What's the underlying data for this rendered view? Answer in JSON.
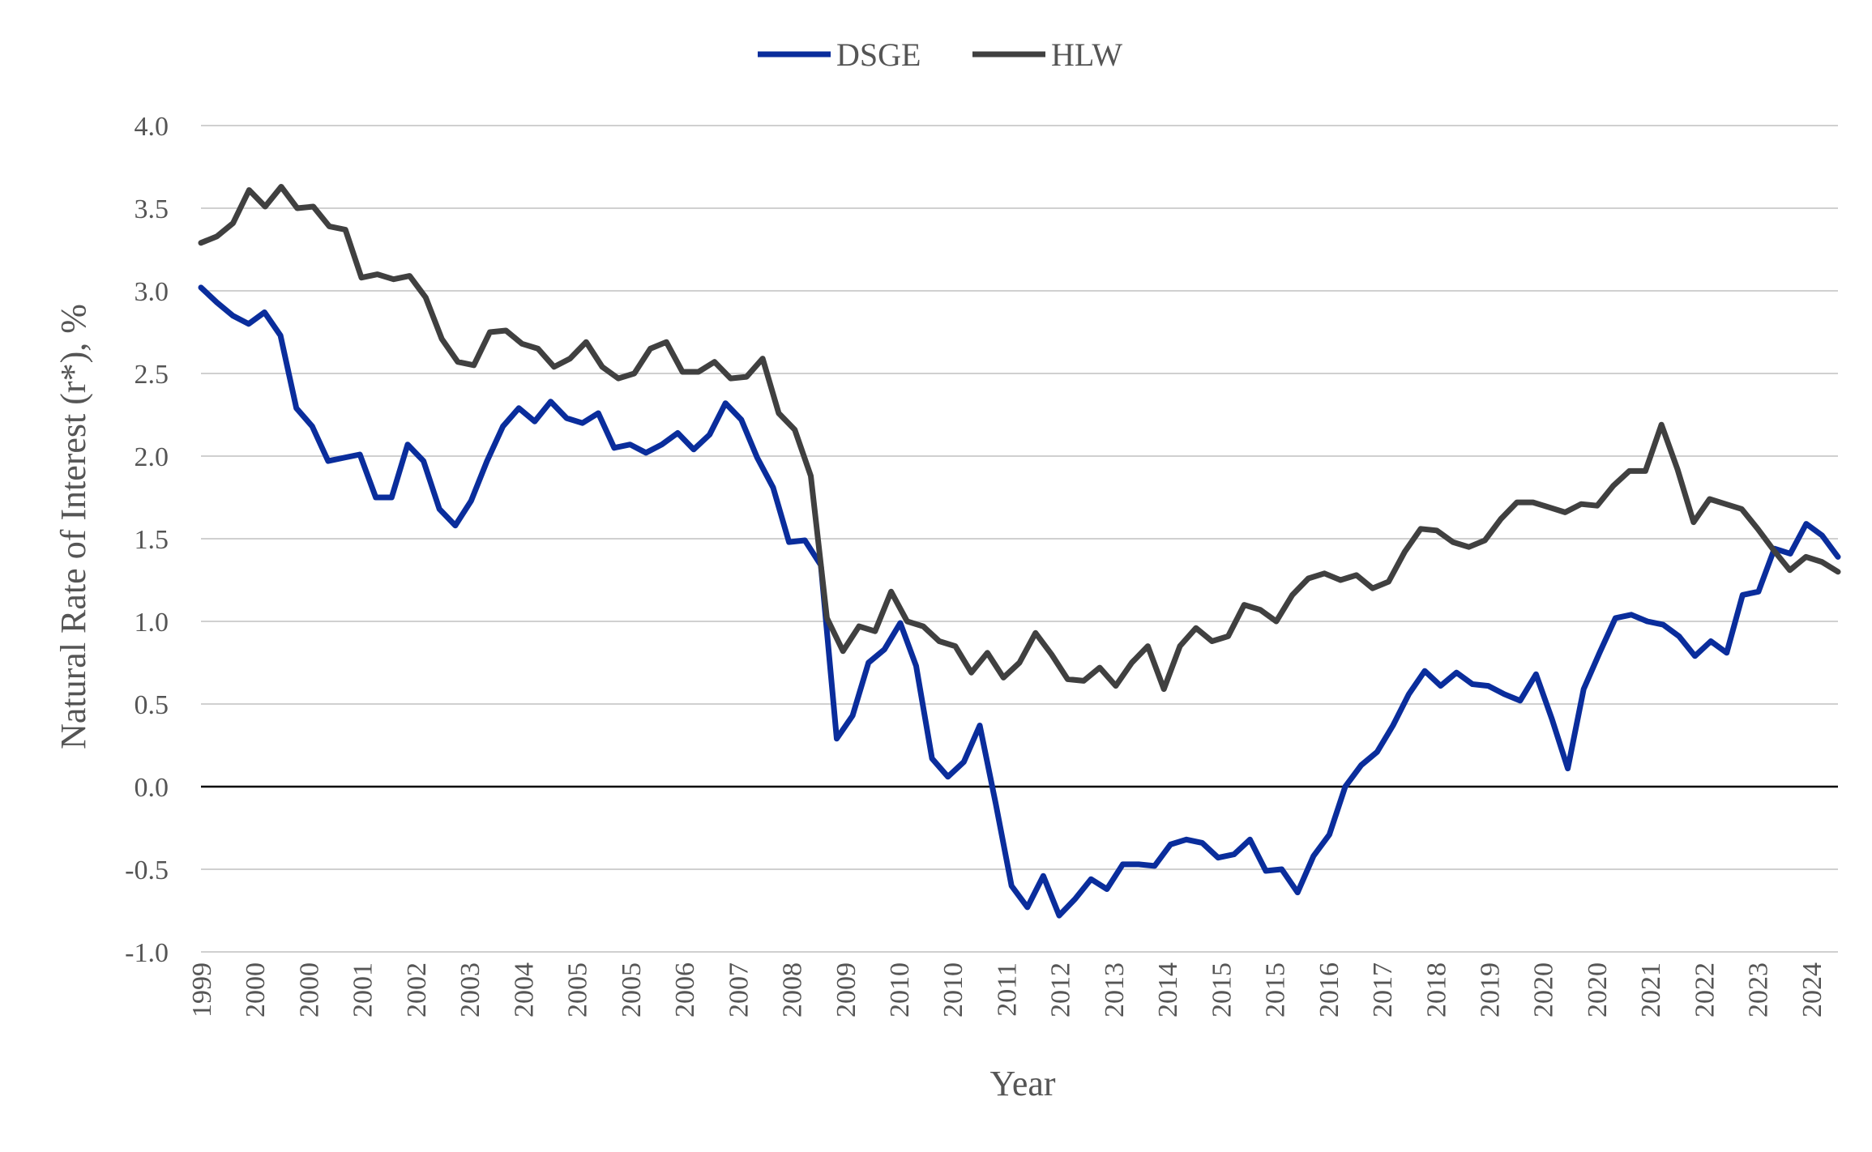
{
  "chart_data": {
    "type": "line",
    "title": "",
    "xlabel": "Year",
    "ylabel": "Natural Rate of Interest (r*), %",
    "ylim": [
      -1.0,
      4.0
    ],
    "yticks": [
      "4.0",
      "3.5",
      "3.0",
      "2.5",
      "2.0",
      "1.5",
      "1.0",
      "0.5",
      "0.0",
      "-0.5",
      "-1.0"
    ],
    "ytick_values": [
      4.0,
      3.5,
      3.0,
      2.5,
      2.0,
      1.5,
      1.0,
      0.5,
      0.0,
      -0.5,
      -1.0
    ],
    "x_tick_labels": [
      "1999",
      "2000",
      "2000",
      "2001",
      "2002",
      "2003",
      "2004",
      "2005",
      "2005",
      "2006",
      "2007",
      "2008",
      "2009",
      "2010",
      "2010",
      "2011",
      "2012",
      "2013",
      "2014",
      "2015",
      "2015",
      "2016",
      "2017",
      "2018",
      "2019",
      "2020",
      "2020",
      "2021",
      "2022",
      "2023",
      "2024"
    ],
    "grid": true,
    "legend_position": "top-center",
    "colors": {
      "DSGE": "#0a2d9c",
      "HLW": "#404040",
      "grid": "#d0d0d0",
      "zero": "#000000"
    },
    "series": [
      {
        "name": "DSGE",
        "values": [
          3.02,
          2.93,
          2.85,
          2.8,
          2.87,
          2.73,
          2.29,
          2.18,
          1.97,
          1.99,
          2.01,
          1.75,
          1.75,
          2.07,
          1.97,
          1.68,
          1.58,
          1.73,
          1.97,
          2.18,
          2.29,
          2.21,
          2.33,
          2.23,
          2.2,
          2.26,
          2.05,
          2.07,
          2.02,
          2.07,
          2.14,
          2.04,
          2.13,
          2.32,
          2.22,
          1.99,
          1.81,
          1.48,
          1.49,
          1.34,
          0.29,
          0.43,
          0.75,
          0.83,
          0.99,
          0.73,
          0.17,
          0.06,
          0.15,
          0.37,
          -0.1,
          -0.6,
          -0.73,
          -0.54,
          -0.78,
          -0.68,
          -0.56,
          -0.62,
          -0.47,
          -0.47,
          -0.48,
          -0.35,
          -0.32,
          -0.34,
          -0.43,
          -0.41,
          -0.32,
          -0.51,
          -0.5,
          -0.64,
          -0.42,
          -0.29,
          0.0,
          0.13,
          0.21,
          0.37,
          0.56,
          0.7,
          0.61,
          0.69,
          0.62,
          0.61,
          0.56,
          0.52,
          0.68,
          0.41,
          0.11,
          0.59,
          0.81,
          1.02,
          1.04,
          1.0,
          0.98,
          0.91,
          0.79,
          0.88,
          0.81,
          1.16,
          1.18,
          1.44,
          1.41,
          1.59,
          1.52,
          1.39
        ]
      },
      {
        "name": "HLW",
        "values": [
          3.29,
          3.33,
          3.41,
          3.61,
          3.51,
          3.63,
          3.5,
          3.51,
          3.39,
          3.37,
          3.08,
          3.1,
          3.07,
          3.09,
          2.96,
          2.71,
          2.57,
          2.55,
          2.75,
          2.76,
          2.68,
          2.65,
          2.54,
          2.59,
          2.69,
          2.54,
          2.47,
          2.5,
          2.65,
          2.69,
          2.51,
          2.51,
          2.57,
          2.47,
          2.48,
          2.59,
          2.26,
          2.16,
          1.88,
          1.02,
          0.82,
          0.97,
          0.94,
          1.18,
          1.0,
          0.97,
          0.88,
          0.85,
          0.69,
          0.81,
          0.66,
          0.75,
          0.93,
          0.8,
          0.65,
          0.64,
          0.72,
          0.61,
          0.75,
          0.85,
          0.59,
          0.85,
          0.96,
          0.88,
          0.91,
          1.1,
          1.07,
          1.0,
          1.16,
          1.26,
          1.29,
          1.25,
          1.28,
          1.2,
          1.24,
          1.42,
          1.56,
          1.55,
          1.48,
          1.45,
          1.49,
          1.62,
          1.72,
          1.72,
          1.69,
          1.66,
          1.71,
          1.7,
          1.82,
          1.91,
          1.91,
          2.19,
          1.92,
          1.6,
          1.74,
          1.71,
          1.68,
          1.56,
          1.43,
          1.31,
          1.39,
          1.36,
          1.3
        ]
      }
    ]
  }
}
